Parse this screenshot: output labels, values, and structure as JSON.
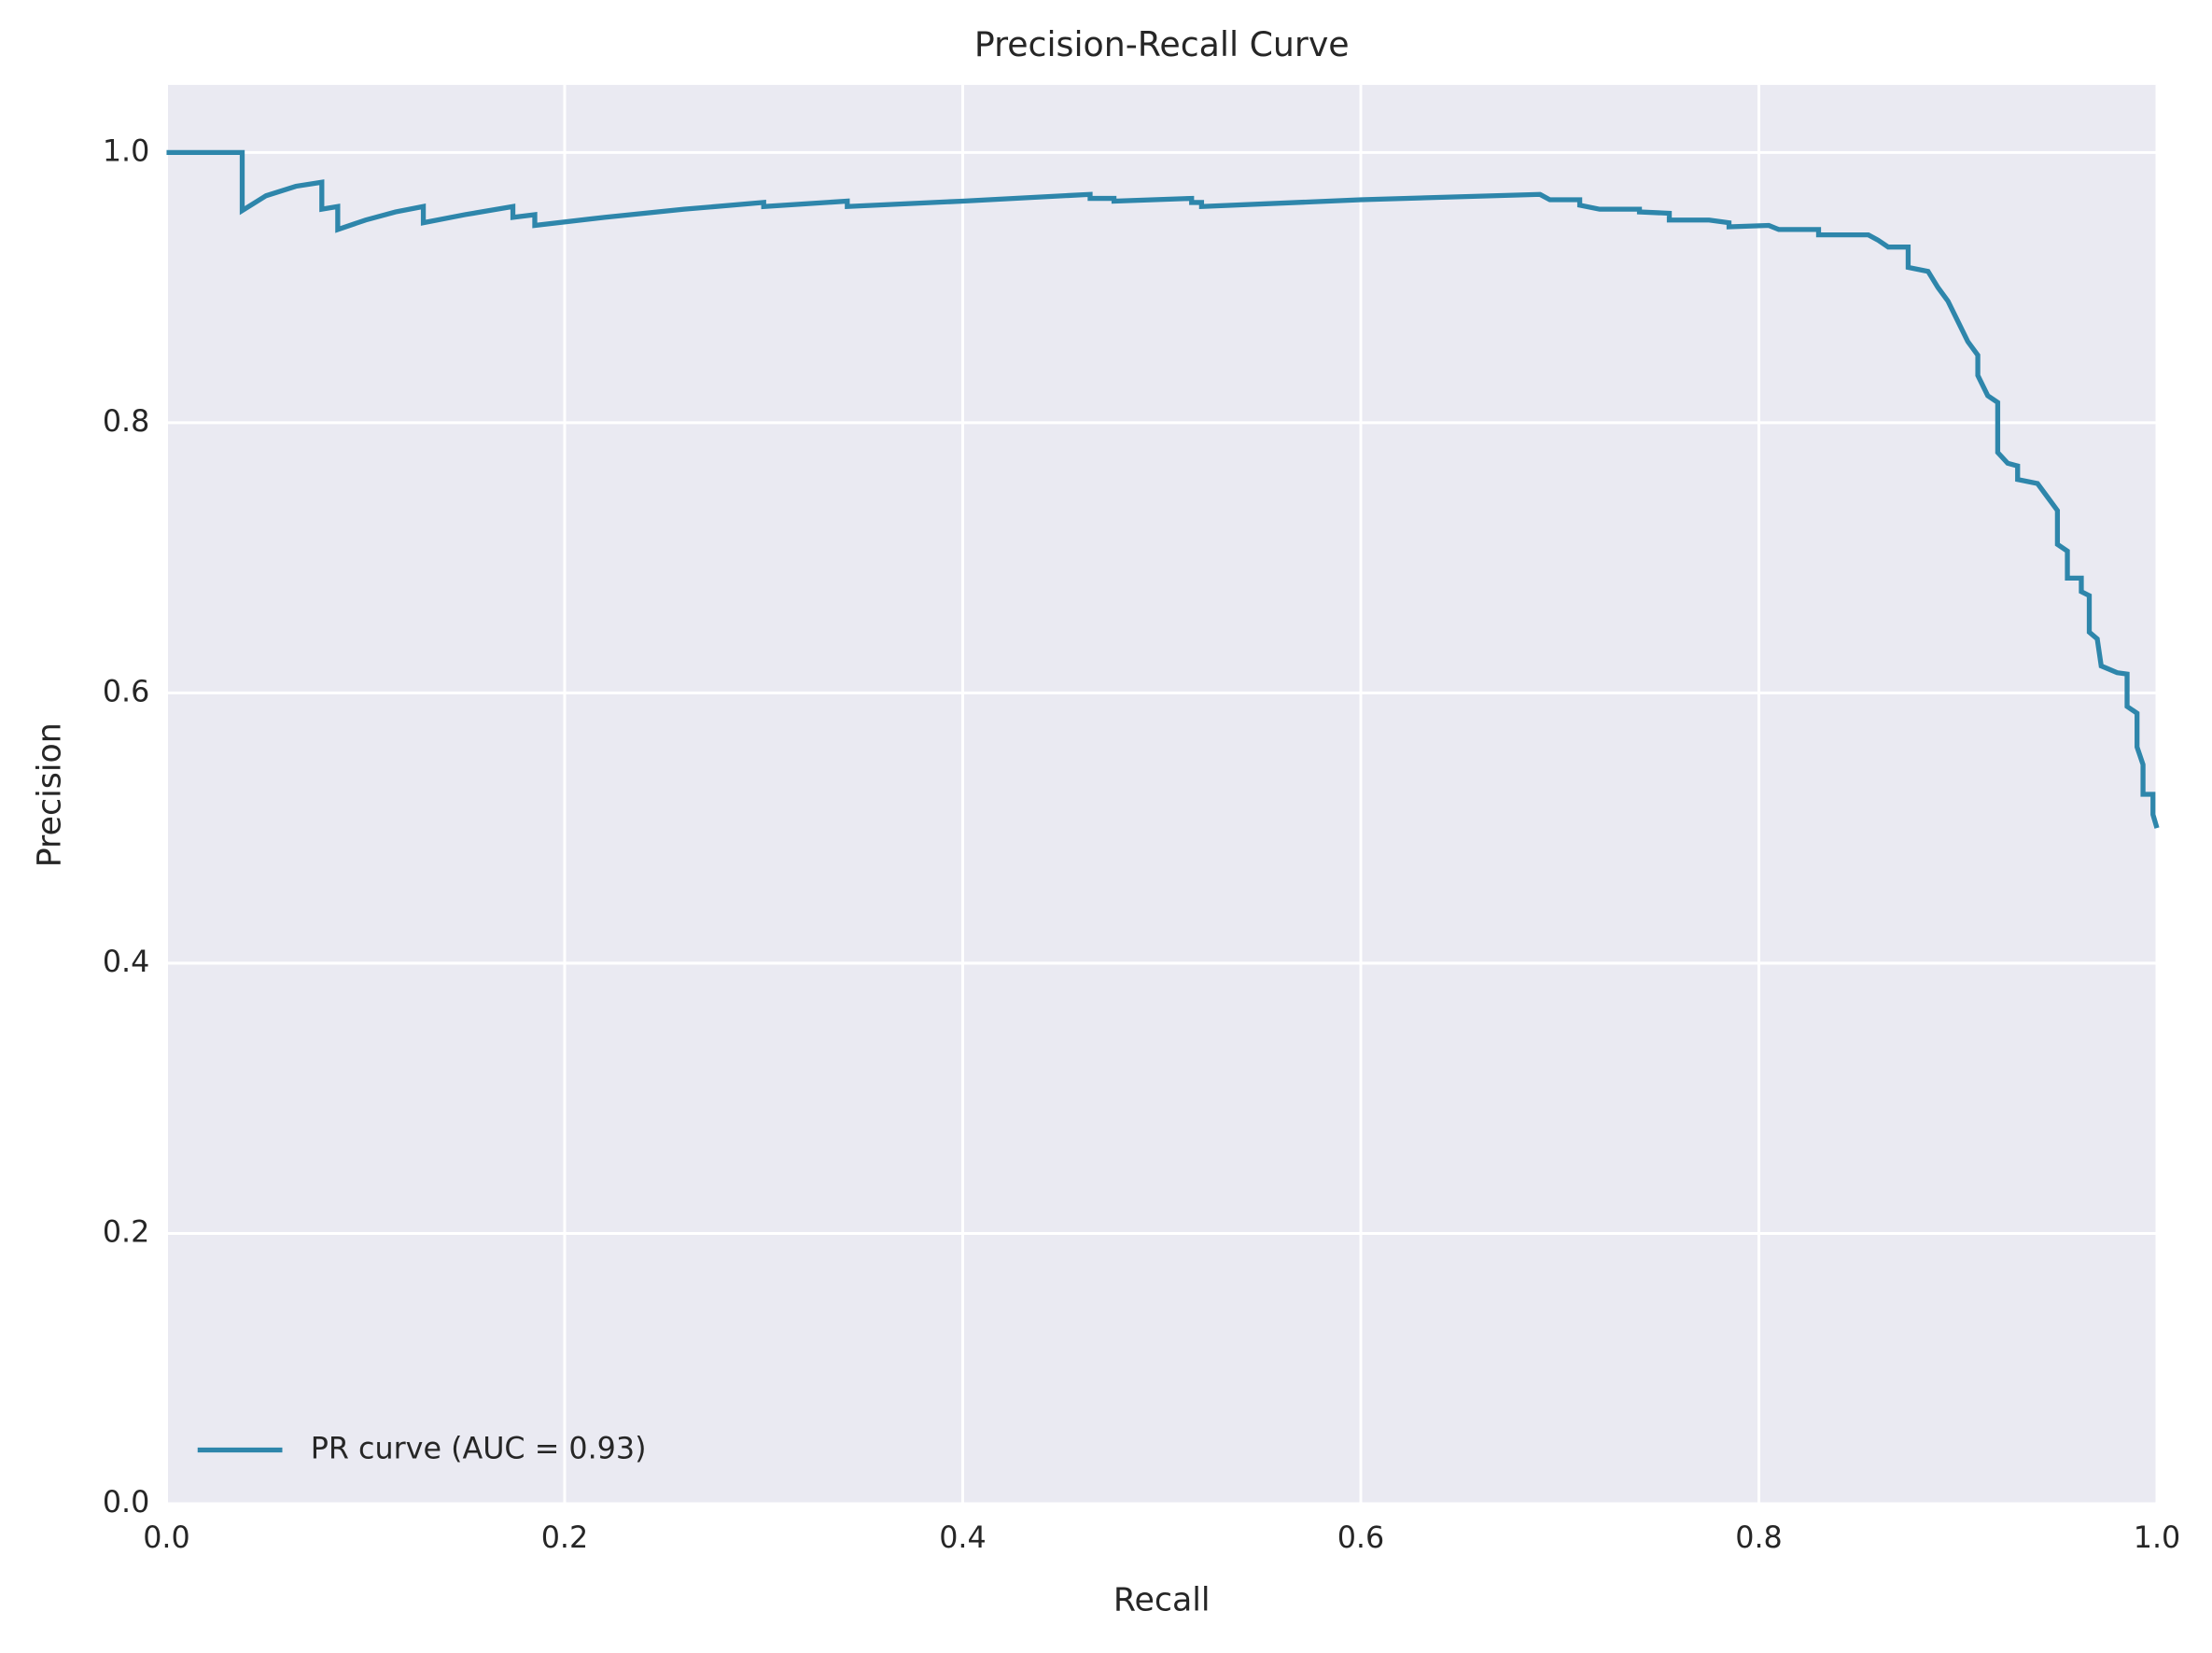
{
  "chart_data": {
    "type": "line",
    "title": "Precision-Recall Curve",
    "xlabel": "Recall",
    "ylabel": "Precision",
    "xlim": [
      0,
      1
    ],
    "ylim": [
      0,
      1.05
    ],
    "xticks": [
      {
        "value": 0,
        "label": "0.0"
      },
      0.2,
      0.4,
      0.6,
      0.8,
      {
        "value": 1,
        "label": "1.0"
      }
    ],
    "yticks": [
      {
        "value": 0,
        "label": "0.0"
      },
      0.2,
      0.4,
      0.6,
      0.8,
      {
        "value": 1,
        "label": "1.0"
      }
    ],
    "grid": true,
    "legend": "lower left",
    "x": [
      0,
      0.038,
      0.038,
      0.05,
      0.065,
      0.078,
      0.078,
      0.086,
      0.086,
      0.1,
      0.115,
      0.129,
      0.129,
      0.15,
      0.174,
      0.174,
      0.185,
      0.185,
      0.22,
      0.26,
      0.3,
      0.3,
      0.342,
      0.342,
      0.4,
      0.464,
      0.464,
      0.476,
      0.476,
      0.515,
      0.515,
      0.52,
      0.52,
      0.6,
      0.69,
      0.695,
      0.71,
      0.71,
      0.72,
      0.74,
      0.74,
      0.755,
      0.755,
      0.775,
      0.785,
      0.785,
      0.805,
      0.81,
      0.83,
      0.83,
      0.855,
      0.86,
      0.865,
      0.875,
      0.875,
      0.885,
      0.89,
      0.895,
      0.9,
      0.905,
      0.91,
      0.91,
      0.915,
      0.92,
      0.92,
      0.925,
      0.93,
      0.93,
      0.94,
      0.945,
      0.95,
      0.95,
      0.955,
      0.955,
      0.962,
      0.962,
      0.966,
      0.966,
      0.97,
      0.972,
      0.98,
      0.985,
      0.985,
      0.99,
      0.99,
      0.993,
      0.993,
      0.998,
      0.998,
      1.0
    ],
    "series": [
      {
        "name": "PR curve (AUC = 0.93)",
        "color": "#2e86ab",
        "values": [
          1.0,
          1.0,
          0.957,
          0.968,
          0.975,
          0.978,
          0.958,
          0.96,
          0.943,
          0.95,
          0.956,
          0.96,
          0.948,
          0.954,
          0.96,
          0.952,
          0.954,
          0.946,
          0.952,
          0.958,
          0.963,
          0.96,
          0.964,
          0.96,
          0.964,
          0.969,
          0.966,
          0.966,
          0.964,
          0.966,
          0.963,
          0.963,
          0.96,
          0.965,
          0.969,
          0.965,
          0.965,
          0.961,
          0.958,
          0.958,
          0.956,
          0.955,
          0.95,
          0.95,
          0.948,
          0.945,
          0.946,
          0.943,
          0.943,
          0.939,
          0.939,
          0.935,
          0.93,
          0.93,
          0.915,
          0.912,
          0.9,
          0.89,
          0.875,
          0.86,
          0.85,
          0.835,
          0.82,
          0.815,
          0.778,
          0.77,
          0.768,
          0.758,
          0.755,
          0.745,
          0.735,
          0.71,
          0.705,
          0.685,
          0.685,
          0.675,
          0.672,
          0.645,
          0.64,
          0.62,
          0.615,
          0.614,
          0.59,
          0.585,
          0.56,
          0.547,
          0.525,
          0.525,
          0.51,
          0.5
        ]
      }
    ]
  }
}
